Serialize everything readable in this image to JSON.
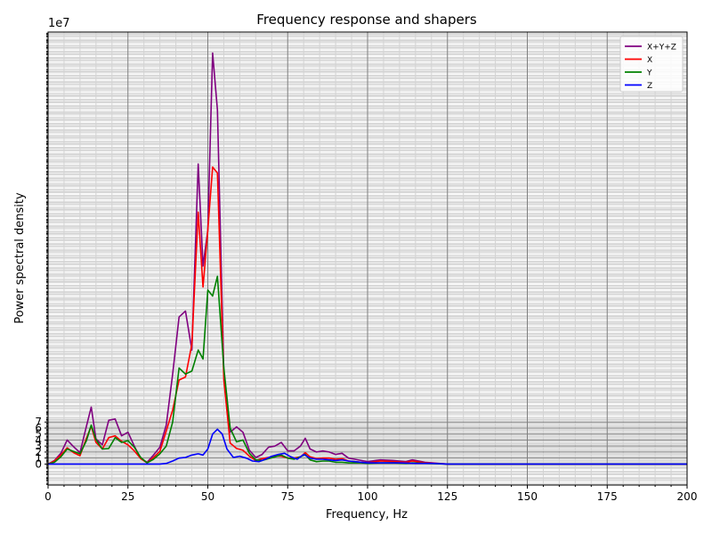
{
  "chart_data": {
    "type": "line",
    "title": "Frequency response and shapers",
    "xlabel": "Frequency, Hz",
    "ylabel": "Power spectral density",
    "y_offset_label": "1e7",
    "xlim": [
      0,
      200
    ],
    "ylim": [
      -3.5,
      72
    ],
    "x_ticks": [
      0,
      25,
      50,
      75,
      100,
      125,
      150,
      175,
      200
    ],
    "y_ticks": [
      0,
      1,
      2,
      3,
      4,
      5,
      6,
      7
    ],
    "grid": true,
    "legend_position": "top-right",
    "series": [
      {
        "name": "X+Y+Z",
        "color": "#800080",
        "x": [
          0,
          2,
          4,
          6,
          8,
          10,
          12,
          13.5,
          15,
          17,
          19,
          21,
          23,
          25,
          27,
          29,
          31,
          33,
          35,
          37,
          39,
          41,
          43,
          45,
          47,
          48.5,
          50,
          51.5,
          53,
          55,
          57,
          59,
          61,
          63,
          65,
          67,
          69,
          71,
          73,
          75,
          77,
          79,
          80.5,
          82,
          84,
          86,
          88,
          90,
          92,
          94,
          96,
          98,
          100,
          104,
          108,
          112,
          114,
          118,
          125,
          150,
          175,
          200
        ],
        "values": [
          0,
          0.6,
          1.8,
          4.0,
          2.9,
          1.9,
          6.3,
          9.5,
          4.2,
          3.2,
          7.3,
          7.5,
          4.7,
          5.3,
          3.0,
          0.9,
          0.3,
          1.5,
          2.8,
          6.5,
          15.0,
          24.5,
          25.5,
          19.0,
          50.0,
          33.0,
          39.0,
          68.5,
          59.0,
          15.0,
          5.3,
          6.2,
          5.3,
          2.3,
          1.1,
          1.6,
          2.8,
          3.0,
          3.6,
          2.2,
          2.2,
          3.0,
          4.3,
          2.5,
          2.0,
          2.2,
          2.0,
          1.6,
          1.8,
          1.0,
          0.8,
          0.6,
          0.4,
          0.7,
          0.6,
          0.4,
          0.7,
          0.3,
          0,
          0,
          0,
          0
        ]
      },
      {
        "name": "X",
        "color": "#ff0000",
        "x": [
          0,
          2,
          4,
          6,
          8,
          10,
          12,
          13.5,
          15,
          17,
          19,
          21,
          23,
          25,
          27,
          29,
          31,
          33,
          35,
          37,
          39,
          41,
          43,
          45,
          47,
          48.5,
          50,
          51.5,
          53,
          55,
          57,
          59,
          61,
          63,
          65,
          67,
          69,
          71,
          73,
          75,
          77,
          79,
          80.5,
          82,
          84,
          86,
          88,
          90,
          92,
          94,
          96,
          98,
          100,
          104,
          108,
          112,
          114,
          118,
          125,
          150,
          175,
          200
        ],
        "values": [
          0,
          0.5,
          1.5,
          2.7,
          1.9,
          1.4,
          4.3,
          6.3,
          3.6,
          2.5,
          4.4,
          4.7,
          3.8,
          3.2,
          2.2,
          0.9,
          0.2,
          1.1,
          2.1,
          5.5,
          9.0,
          14.0,
          14.5,
          20.0,
          42.0,
          29.5,
          39.0,
          49.5,
          48.5,
          14.0,
          3.5,
          2.6,
          2.3,
          1.3,
          0.6,
          0.9,
          1.1,
          1.3,
          1.3,
          1.0,
          1.0,
          1.2,
          1.9,
          1.2,
          0.9,
          1.0,
          1.0,
          0.8,
          0.9,
          0.5,
          0.4,
          0.3,
          0.2,
          0.5,
          0.4,
          0.3,
          0.5,
          0.2,
          0,
          0,
          0,
          0
        ]
      },
      {
        "name": "Y",
        "color": "#008000",
        "x": [
          0,
          2,
          4,
          6,
          8,
          10,
          12,
          13.5,
          15,
          17,
          19,
          21,
          23,
          25,
          27,
          29,
          31,
          33,
          35,
          37,
          39,
          41,
          43,
          45,
          47,
          48.5,
          50,
          51.5,
          53,
          55,
          57,
          59,
          61,
          63,
          65,
          67,
          69,
          71,
          73,
          75,
          77,
          79,
          80.5,
          82,
          84,
          86,
          88,
          90,
          92,
          94,
          96,
          98,
          100,
          104,
          108,
          112,
          114,
          118,
          125,
          150,
          175,
          200
        ],
        "values": [
          0,
          0.3,
          1.2,
          2.5,
          2.1,
          1.7,
          3.9,
          6.5,
          4.1,
          2.5,
          2.6,
          4.4,
          3.6,
          3.9,
          2.8,
          1.1,
          0.2,
          0.8,
          1.7,
          3.0,
          7.0,
          16.0,
          15.0,
          15.5,
          19.0,
          17.5,
          29.0,
          28.0,
          31.3,
          16.0,
          6.0,
          3.7,
          4.0,
          1.8,
          0.7,
          0.6,
          0.9,
          1.2,
          1.5,
          1.0,
          0.8,
          1.2,
          1.6,
          0.7,
          0.4,
          0.5,
          0.5,
          0.3,
          0.3,
          0.2,
          0.2,
          0.2,
          0.1,
          0.2,
          0.2,
          0.1,
          0.2,
          0.1,
          0,
          0,
          0,
          0
        ]
      },
      {
        "name": "Z",
        "color": "#0000ff",
        "x": [
          0,
          10,
          20,
          30,
          35,
          37,
          39,
          41,
          43,
          45,
          47,
          48.5,
          50,
          51.5,
          53,
          54.5,
          56,
          58,
          60,
          62,
          64,
          66,
          68,
          70,
          72,
          74,
          76,
          78,
          80,
          82,
          84,
          86,
          88,
          90,
          92,
          94,
          96,
          98,
          100,
          105,
          110,
          115,
          120,
          125,
          150,
          175,
          200
        ],
        "values": [
          0,
          0,
          0,
          0,
          0,
          0.1,
          0.5,
          1.0,
          1.1,
          1.5,
          1.7,
          1.5,
          2.5,
          5.0,
          5.8,
          5.0,
          2.5,
          1.1,
          1.3,
          1.0,
          0.5,
          0.4,
          0.8,
          1.3,
          1.6,
          1.8,
          1.2,
          0.8,
          1.6,
          1.0,
          0.8,
          0.8,
          0.7,
          0.6,
          0.7,
          0.5,
          0.4,
          0.3,
          0.2,
          0.2,
          0.2,
          0.1,
          0.1,
          0,
          0,
          0,
          0
        ]
      }
    ]
  }
}
